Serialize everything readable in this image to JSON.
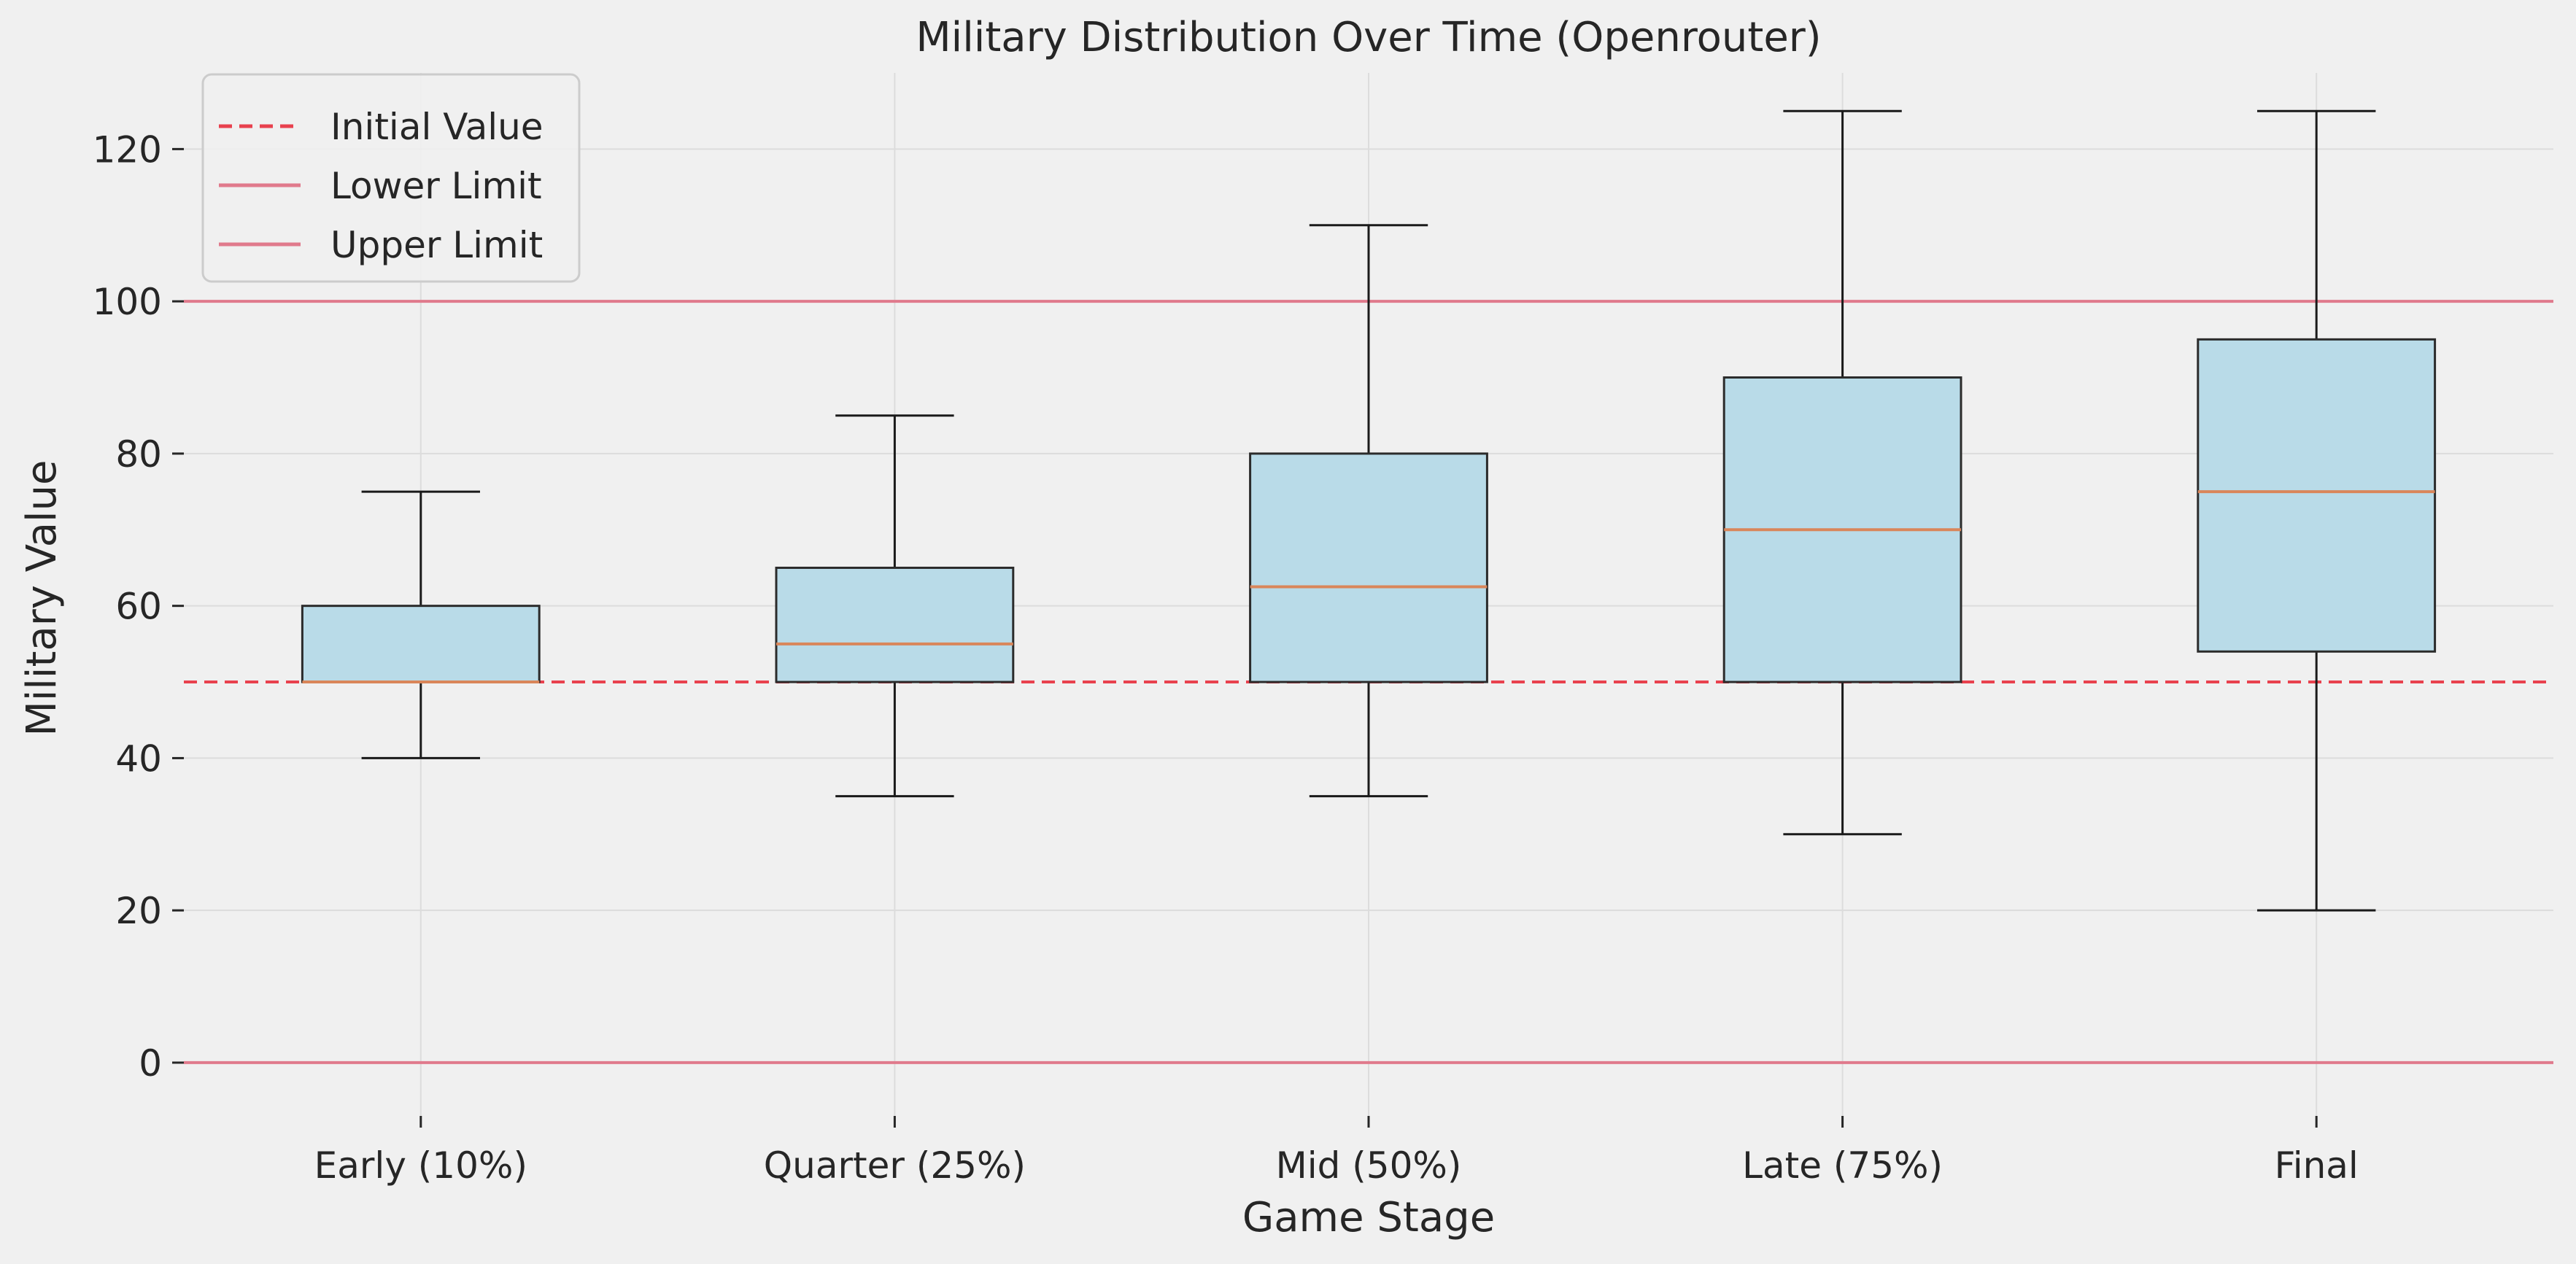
{
  "chart_data": {
    "type": "box",
    "title": "Military Distribution Over Time (Openrouter)",
    "xlabel": "Game Stage",
    "ylabel": "Military Value",
    "ylim": [
      -7,
      130
    ],
    "yticks": [
      0,
      20,
      40,
      60,
      80,
      100,
      120
    ],
    "grid": true,
    "legend_position": "top-left",
    "categories": [
      "Early (10%)",
      "Quarter (25%)",
      "Mid (50%)",
      "Late (75%)",
      "Final"
    ],
    "boxes": [
      {
        "whisker_low": 40,
        "q1": 50,
        "median": 50,
        "q3": 60,
        "whisker_high": 75
      },
      {
        "whisker_low": 35,
        "q1": 50,
        "median": 55,
        "q3": 65,
        "whisker_high": 85
      },
      {
        "whisker_low": 35,
        "q1": 50,
        "median": 62.5,
        "q3": 80,
        "whisker_high": 110
      },
      {
        "whisker_low": 30,
        "q1": 50,
        "median": 70,
        "q3": 90,
        "whisker_high": 125
      },
      {
        "whisker_low": 20,
        "q1": 54,
        "median": 75,
        "q3": 95,
        "whisker_high": 125
      }
    ],
    "reference_lines": [
      {
        "name": "Initial Value",
        "value": 50,
        "style": "dashed",
        "color": "#e8414e"
      },
      {
        "name": "Lower Limit",
        "value": 0,
        "style": "solid",
        "color": "#e07a8c"
      },
      {
        "name": "Upper Limit",
        "value": 100,
        "style": "solid",
        "color": "#e07a8c"
      }
    ],
    "colors": {
      "box_fill": "#b9dbe8",
      "box_edge": "#2b2b2b",
      "median": "#d9865a",
      "whisker": "#1a1a1a",
      "grid": "#dcdcdc"
    }
  }
}
